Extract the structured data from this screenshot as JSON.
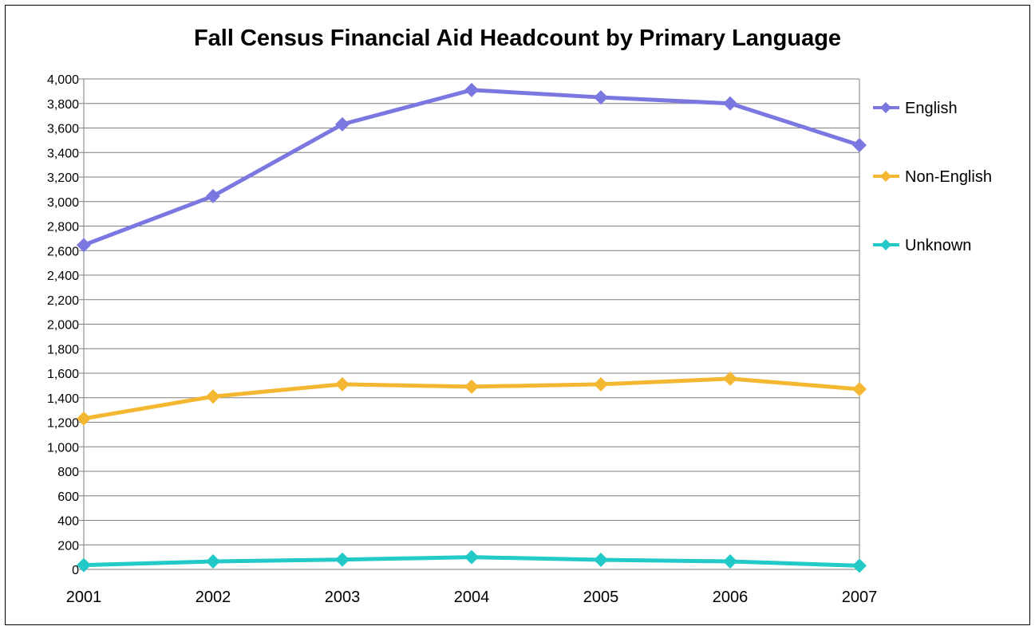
{
  "chart_data": {
    "type": "line",
    "title": "Fall Census Financial Aid Headcount by Primary Language",
    "xlabel": "",
    "ylabel": "",
    "x": [
      "2001",
      "2002",
      "2003",
      "2004",
      "2005",
      "2006",
      "2007"
    ],
    "ylim": [
      0,
      4000
    ],
    "y_ticks": [
      "0",
      "200",
      "400",
      "600",
      "800",
      "1,000",
      "1,200",
      "1,400",
      "1,600",
      "1,800",
      "2,000",
      "2,200",
      "2,400",
      "2,600",
      "2,800",
      "3,000",
      "3,200",
      "3,400",
      "3,600",
      "3,800",
      "4,000"
    ],
    "grid": "horizontal",
    "legend_position": "right",
    "series": [
      {
        "name": "English",
        "color": "#7b77e0",
        "marker": "diamond",
        "values": [
          2645,
          3045,
          3630,
          3910,
          3850,
          3800,
          3460
        ]
      },
      {
        "name": "Non-English",
        "color": "#f4b731",
        "marker": "diamond",
        "values": [
          1230,
          1410,
          1510,
          1490,
          1510,
          1555,
          1470
        ]
      },
      {
        "name": "Unknown",
        "color": "#22c9c6",
        "marker": "diamond",
        "values": [
          35,
          65,
          80,
          100,
          78,
          65,
          30
        ]
      }
    ]
  }
}
